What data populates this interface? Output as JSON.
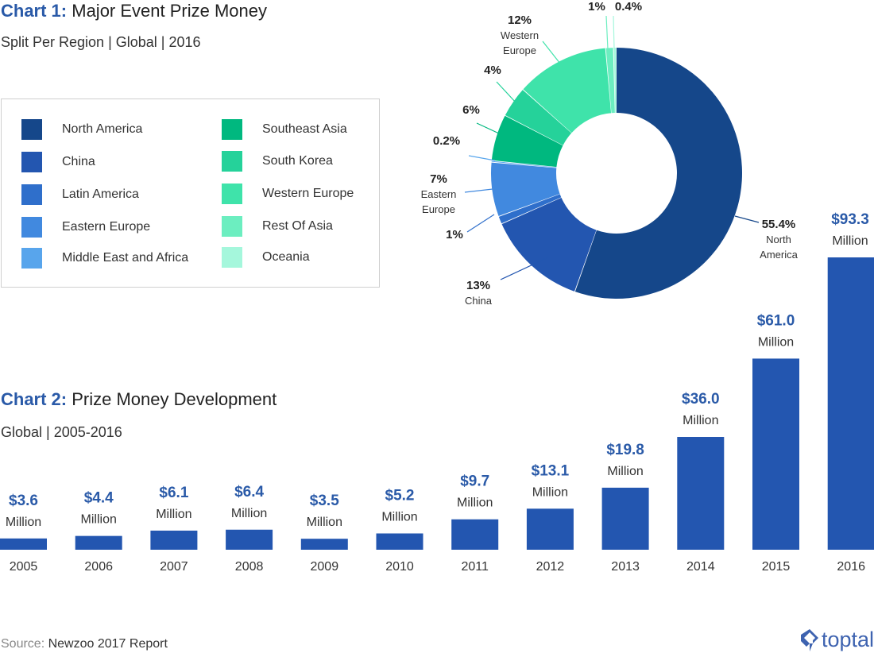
{
  "chart1": {
    "title_prefix": "Chart 1:",
    "title_text": "Major Event Prize Money",
    "subtitle": "Split Per Region | Global | 2016"
  },
  "chart2": {
    "title_prefix": "Chart 2:",
    "title_text": "Prize Money Development",
    "subtitle": "Global | 2005-2016"
  },
  "legend": [
    {
      "label": "North America",
      "color": "#15478a"
    },
    {
      "label": "China",
      "color": "#2356b0"
    },
    {
      "label": "Latin America",
      "color": "#2f6fcb"
    },
    {
      "label": "Eastern Europe",
      "color": "#4189df"
    },
    {
      "label": "Middle East and Africa",
      "color": "#58a5ec"
    },
    {
      "label": "Southeast Asia",
      "color": "#00b87f"
    },
    {
      "label": "South Korea",
      "color": "#25d29a"
    },
    {
      "label": "Western Europe",
      "color": "#3fe3aa"
    },
    {
      "label": "Rest Of Asia",
      "color": "#6ceec0"
    },
    {
      "label": "Oceania",
      "color": "#a5f7dc"
    }
  ],
  "chart_data": [
    {
      "type": "pie",
      "title": "Chart 1: Major Event Prize Money",
      "subtitle": "Split Per Region | Global | 2016",
      "slices": [
        {
          "name": "North America",
          "value": 55.4,
          "label": "55.4%",
          "sublabel": [
            "North",
            "America"
          ],
          "color": "#15478a"
        },
        {
          "name": "China",
          "value": 13,
          "label": "13%",
          "sublabel": [
            "China"
          ],
          "color": "#2356b0"
        },
        {
          "name": "Latin America",
          "value": 1,
          "label": "1%",
          "sublabel": [],
          "color": "#2f6fcb"
        },
        {
          "name": "Eastern Europe",
          "value": 7,
          "label": "7%",
          "sublabel": [
            "Eastern",
            "Europe"
          ],
          "color": "#4189df"
        },
        {
          "name": "Middle East and Africa",
          "value": 0.2,
          "label": "0.2%",
          "sublabel": [],
          "color": "#58a5ec"
        },
        {
          "name": "Southeast Asia",
          "value": 6,
          "label": "6%",
          "sublabel": [],
          "color": "#00b87f"
        },
        {
          "name": "South Korea",
          "value": 4,
          "label": "4%",
          "sublabel": [],
          "color": "#25d29a"
        },
        {
          "name": "Western Europe",
          "value": 12,
          "label": "12%",
          "sublabel": [
            "Western",
            "Europe"
          ],
          "color": "#3fe3aa"
        },
        {
          "name": "Rest Of Asia",
          "value": 1,
          "label": "1%",
          "sublabel": [],
          "color": "#6ceec0"
        },
        {
          "name": "Oceania",
          "value": 0.4,
          "label": "0.4%",
          "sublabel": [],
          "color": "#a5f7dc"
        }
      ],
      "legend_position": "left"
    },
    {
      "type": "bar",
      "title": "Chart 2: Prize Money Development",
      "subtitle": "Global | 2005-2016",
      "categories": [
        "2005",
        "2006",
        "2007",
        "2008",
        "2009",
        "2010",
        "2011",
        "2012",
        "2013",
        "2014",
        "2015",
        "2016"
      ],
      "values": [
        3.6,
        4.4,
        6.1,
        6.4,
        3.5,
        5.2,
        9.7,
        13.1,
        19.8,
        36.0,
        61.0,
        93.3
      ],
      "value_labels": [
        "$3.6",
        "$4.4",
        "$6.1",
        "$6.4",
        "$3.5",
        "$5.2",
        "$9.7",
        "$13.1",
        "$19.8",
        "$36.0",
        "$61.0",
        "$93.3"
      ],
      "unit_label": "Million",
      "bar_color": "#2356b0",
      "value_label_color": "#2a5aa8",
      "grid": false
    }
  ],
  "footer": {
    "source_label": "Source:",
    "source_text": "Newzoo 2017 Report",
    "logo_text": "toptal"
  }
}
